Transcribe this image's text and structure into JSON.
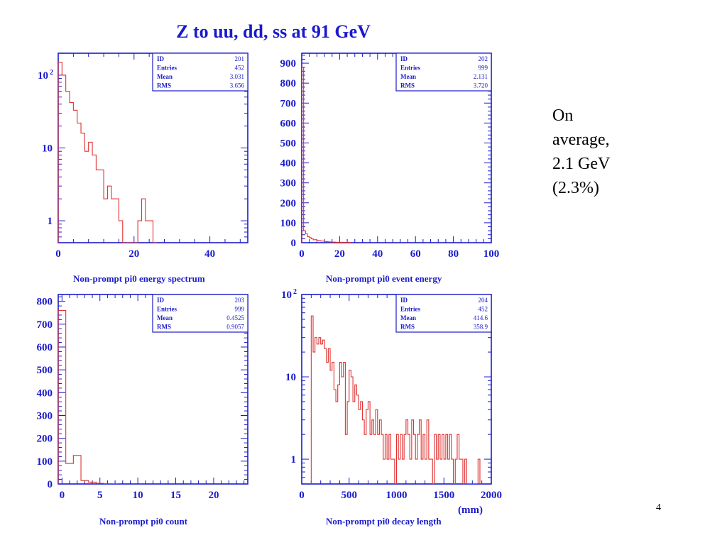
{
  "slide": {
    "title": "Z to uu, dd, ss at 91 GeV",
    "note_lines": [
      "On",
      "average,",
      "2.1 GeV",
      "(2.3%)"
    ],
    "page_number": "4",
    "unit_label": "(mm)"
  },
  "colors": {
    "frame": "#1a1acc",
    "histogram": "#e03030",
    "background": "#ffffff"
  },
  "chart_data": [
    {
      "type": "histogram",
      "title": "",
      "xlabel": "Non-prompt pi0 energy spectrum",
      "ylabel": "",
      "xlim": [
        0,
        50
      ],
      "ylim": [
        0.5,
        200
      ],
      "yscale": "log",
      "x_ticks": [
        0,
        20,
        40
      ],
      "y_ticks": [
        {
          "value": 1,
          "base": "1",
          "exp": ""
        },
        {
          "value": 10,
          "base": "10",
          "exp": ""
        },
        {
          "value": 100,
          "base": "10",
          "exp": "2"
        }
      ],
      "stats": {
        "ID": "201",
        "Entries": "452",
        "Mean": "3.031",
        "RMS": "3.656"
      },
      "bin_width": 1,
      "bins": [
        [
          0,
          150
        ],
        [
          1,
          100
        ],
        [
          2,
          60
        ],
        [
          3,
          42
        ],
        [
          4,
          33
        ],
        [
          5,
          22
        ],
        [
          6,
          16
        ],
        [
          7,
          9
        ],
        [
          8,
          12
        ],
        [
          9,
          8
        ],
        [
          10,
          5
        ],
        [
          11,
          5
        ],
        [
          12,
          2
        ],
        [
          13,
          3
        ],
        [
          14,
          2
        ],
        [
          15,
          2
        ],
        [
          16,
          1
        ],
        [
          17,
          0
        ],
        [
          18,
          0
        ],
        [
          19,
          0
        ],
        [
          20,
          0
        ],
        [
          21,
          1
        ],
        [
          22,
          2
        ],
        [
          23,
          1
        ],
        [
          24,
          1
        ],
        [
          25,
          0
        ]
      ]
    },
    {
      "type": "histogram",
      "title": "",
      "xlabel": "Non-prompt pi0 event energy",
      "ylabel": "",
      "xlim": [
        0,
        100
      ],
      "ylim": [
        0,
        950
      ],
      "yscale": "linear",
      "x_ticks": [
        0,
        20,
        40,
        60,
        80,
        100
      ],
      "y_ticks": [
        {
          "value": 0,
          "base": "0",
          "exp": ""
        },
        {
          "value": 100,
          "base": "100",
          "exp": ""
        },
        {
          "value": 200,
          "base": "200",
          "exp": ""
        },
        {
          "value": 300,
          "base": "300",
          "exp": ""
        },
        {
          "value": 400,
          "base": "400",
          "exp": ""
        },
        {
          "value": 500,
          "base": "500",
          "exp": ""
        },
        {
          "value": 600,
          "base": "600",
          "exp": ""
        },
        {
          "value": 700,
          "base": "700",
          "exp": ""
        },
        {
          "value": 800,
          "base": "800",
          "exp": ""
        },
        {
          "value": 900,
          "base": "900",
          "exp": ""
        }
      ],
      "stats": {
        "ID": "202",
        "Entries": "999",
        "Mean": "2.131",
        "RMS": "3.720"
      },
      "bin_width": 1,
      "bins": [
        [
          0,
          880
        ],
        [
          1,
          60
        ],
        [
          2,
          45
        ],
        [
          3,
          30
        ],
        [
          4,
          25
        ],
        [
          5,
          20
        ],
        [
          6,
          15
        ],
        [
          7,
          15
        ],
        [
          8,
          12
        ],
        [
          9,
          10
        ],
        [
          10,
          8
        ],
        [
          11,
          8
        ],
        [
          12,
          6
        ],
        [
          13,
          5
        ],
        [
          14,
          4
        ],
        [
          15,
          4
        ],
        [
          16,
          3
        ],
        [
          17,
          3
        ],
        [
          18,
          2
        ],
        [
          19,
          2
        ],
        [
          20,
          2
        ],
        [
          21,
          2
        ],
        [
          22,
          1
        ],
        [
          23,
          1
        ],
        [
          24,
          1
        ],
        [
          25,
          1
        ]
      ]
    },
    {
      "type": "histogram",
      "title": "",
      "xlabel": "Non-prompt pi0 count",
      "ylabel": "",
      "xlim": [
        -0.5,
        24.5
      ],
      "ylim": [
        0,
        830
      ],
      "yscale": "linear",
      "x_ticks": [
        0,
        5,
        10,
        15,
        20
      ],
      "y_ticks": [
        {
          "value": 0,
          "base": "0",
          "exp": ""
        },
        {
          "value": 100,
          "base": "100",
          "exp": ""
        },
        {
          "value": 200,
          "base": "200",
          "exp": ""
        },
        {
          "value": 300,
          "base": "300",
          "exp": ""
        },
        {
          "value": 400,
          "base": "400",
          "exp": ""
        },
        {
          "value": 500,
          "base": "500",
          "exp": ""
        },
        {
          "value": 600,
          "base": "600",
          "exp": ""
        },
        {
          "value": 700,
          "base": "700",
          "exp": ""
        },
        {
          "value": 800,
          "base": "800",
          "exp": ""
        }
      ],
      "stats": {
        "ID": "203",
        "Entries": "999",
        "Mean": "0.4525",
        "RMS": "0.9057"
      },
      "bin_width": 1,
      "bins": [
        [
          -0.5,
          760
        ],
        [
          0.5,
          90
        ],
        [
          1.5,
          125
        ],
        [
          2.5,
          15
        ],
        [
          3.5,
          8
        ],
        [
          4.5,
          3
        ],
        [
          5.5,
          1
        ],
        [
          6.5,
          0
        ]
      ]
    },
    {
      "type": "histogram",
      "title": "",
      "xlabel": "Non-prompt pi0 decay length",
      "ylabel": "",
      "xlim": [
        0,
        2000
      ],
      "ylim": [
        0.5,
        100
      ],
      "yscale": "log",
      "x_ticks": [
        0,
        500,
        1000,
        1500,
        2000
      ],
      "y_ticks": [
        {
          "value": 1,
          "base": "1",
          "exp": ""
        },
        {
          "value": 10,
          "base": "10",
          "exp": ""
        },
        {
          "value": 100,
          "base": "10",
          "exp": "2"
        }
      ],
      "stats": {
        "ID": "204",
        "Entries": "452",
        "Mean": "414.6",
        "RMS": "358.9"
      },
      "bin_width": 20,
      "bins": [
        [
          100,
          55
        ],
        [
          120,
          20
        ],
        [
          140,
          30
        ],
        [
          160,
          25
        ],
        [
          180,
          30
        ],
        [
          200,
          25
        ],
        [
          220,
          28
        ],
        [
          240,
          22
        ],
        [
          260,
          15
        ],
        [
          280,
          22
        ],
        [
          300,
          12
        ],
        [
          320,
          15
        ],
        [
          340,
          7
        ],
        [
          360,
          5
        ],
        [
          380,
          8
        ],
        [
          400,
          15
        ],
        [
          420,
          10
        ],
        [
          440,
          15
        ],
        [
          460,
          2
        ],
        [
          480,
          5
        ],
        [
          500,
          12
        ],
        [
          520,
          10
        ],
        [
          540,
          5
        ],
        [
          560,
          8
        ],
        [
          580,
          6
        ],
        [
          600,
          4
        ],
        [
          620,
          5
        ],
        [
          640,
          3
        ],
        [
          660,
          2
        ],
        [
          680,
          4
        ],
        [
          700,
          5
        ],
        [
          720,
          2
        ],
        [
          740,
          3
        ],
        [
          760,
          2
        ],
        [
          780,
          4
        ],
        [
          800,
          2
        ],
        [
          820,
          3
        ],
        [
          840,
          2
        ],
        [
          860,
          1
        ],
        [
          880,
          2
        ],
        [
          900,
          1
        ],
        [
          920,
          2
        ],
        [
          940,
          1
        ],
        [
          960,
          1
        ],
        [
          980,
          0
        ],
        [
          1000,
          2
        ],
        [
          1020,
          1
        ],
        [
          1040,
          2
        ],
        [
          1060,
          1
        ],
        [
          1080,
          2
        ],
        [
          1100,
          3
        ],
        [
          1120,
          2
        ],
        [
          1140,
          1
        ],
        [
          1160,
          3
        ],
        [
          1180,
          2
        ],
        [
          1200,
          1
        ],
        [
          1220,
          2
        ],
        [
          1240,
          3
        ],
        [
          1260,
          1
        ],
        [
          1280,
          2
        ],
        [
          1300,
          1
        ],
        [
          1320,
          3
        ],
        [
          1340,
          1
        ],
        [
          1360,
          1
        ],
        [
          1380,
          0
        ],
        [
          1400,
          2
        ],
        [
          1420,
          1
        ],
        [
          1440,
          2
        ],
        [
          1460,
          1
        ],
        [
          1480,
          2
        ],
        [
          1500,
          1
        ],
        [
          1520,
          2
        ],
        [
          1540,
          1
        ],
        [
          1560,
          2
        ],
        [
          1580,
          1
        ],
        [
          1600,
          0
        ],
        [
          1620,
          1
        ],
        [
          1640,
          2
        ],
        [
          1660,
          1
        ],
        [
          1680,
          1
        ],
        [
          1700,
          0
        ],
        [
          1720,
          1
        ],
        [
          1740,
          0
        ],
        [
          1760,
          0
        ],
        [
          1780,
          0
        ],
        [
          1800,
          0
        ],
        [
          1820,
          0
        ],
        [
          1840,
          0
        ],
        [
          1860,
          1
        ],
        [
          1880,
          0
        ]
      ]
    }
  ]
}
